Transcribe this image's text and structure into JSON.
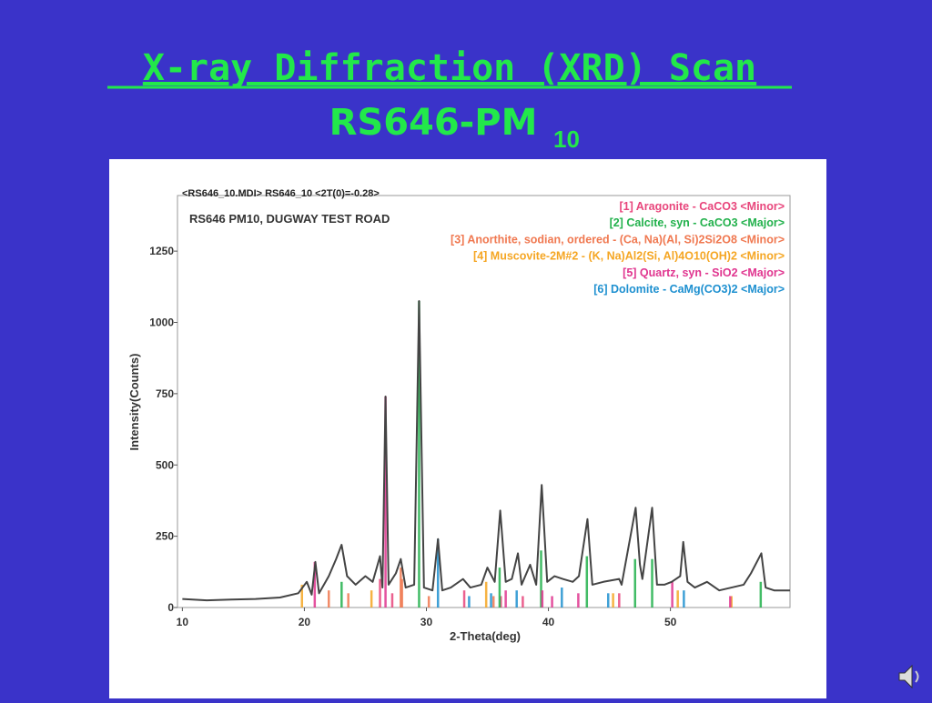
{
  "slide": {
    "title": "X-ray Diffraction (XRD) Scan",
    "subtitle": "RS646-PM",
    "subtitle_subscript": "10"
  },
  "chart_data": {
    "type": "line",
    "file_label": "<RS646_10.MDI> RS646_10 <2T(0)=-0.28>",
    "title": "RS646 PM10, DUGWAY TEST ROAD",
    "x_label": "2-Theta(deg)",
    "y_label": "Intensity(Counts)",
    "xlim": [
      9.6,
      59.8
    ],
    "ylim": [
      0,
      1445
    ],
    "xticks": [
      10,
      20,
      30,
      40,
      50
    ],
    "yticks": [
      0,
      250,
      500,
      750,
      1000,
      1250
    ],
    "series": [
      {
        "color": "#444444",
        "x": [
          10,
          12,
          14,
          16,
          18,
          19.5,
          20.2,
          20.6,
          20.9,
          21.2,
          22,
          22.6,
          23.05,
          23.5,
          24.2,
          25,
          25.6,
          26.2,
          26.4,
          26.65,
          26.9,
          27.5,
          27.9,
          28.3,
          29.0,
          29.4,
          29.8,
          30.5,
          30.95,
          31.3,
          32,
          33,
          33.6,
          34.5,
          35,
          35.6,
          36.05,
          36.5,
          37,
          37.5,
          37.8,
          38.5,
          39,
          39.45,
          39.9,
          40.5,
          41.2,
          42,
          42.5,
          43.2,
          43.6,
          44.5,
          45.8,
          46,
          47.15,
          47.5,
          47.7,
          48.5,
          48.9,
          49.5,
          50.1,
          50.8,
          51.05,
          51.4,
          52,
          53,
          54,
          55,
          56,
          56.6,
          57.45,
          57.8,
          58.5,
          59.8
        ],
        "values": [
          30,
          25,
          28,
          30,
          35,
          50,
          90,
          45,
          160,
          50,
          110,
          170,
          220,
          110,
          80,
          110,
          90,
          180,
          70,
          740,
          80,
          120,
          170,
          70,
          80,
          1075,
          70,
          60,
          240,
          60,
          70,
          100,
          70,
          80,
          140,
          90,
          340,
          90,
          100,
          190,
          80,
          150,
          80,
          430,
          90,
          110,
          100,
          90,
          110,
          310,
          80,
          90,
          100,
          80,
          350,
          150,
          100,
          350,
          80,
          80,
          90,
          110,
          230,
          90,
          70,
          90,
          60,
          70,
          80,
          120,
          190,
          70,
          60,
          60
        ]
      }
    ],
    "phases": [
      {
        "label": "[1] Aragonite - CaCO3 <Minor>",
        "color": "#e8467c",
        "x": [
          26.2,
          27.2,
          33.1,
          36.1,
          37.9,
          45.8
        ],
        "values": [
          100,
          50,
          60,
          40,
          40,
          50
        ]
      },
      {
        "label": "[2] Calcite, syn - CaCO3 <Major>",
        "color": "#22b14c",
        "x": [
          23.05,
          29.4,
          36.0,
          39.4,
          43.15,
          47.1,
          48.5,
          57.4
        ],
        "values": [
          90,
          1075,
          140,
          200,
          180,
          170,
          170,
          90
        ]
      },
      {
        "label": "[3] Anorthite, sodian, ordered - (Ca, Na)(Al, Si)2Si2O8 <Minor>",
        "color": "#f07850",
        "x": [
          22.0,
          23.6,
          27.9,
          28.0,
          30.2,
          35.5
        ],
        "values": [
          60,
          50,
          140,
          100,
          40,
          40
        ]
      },
      {
        "label": "[4] Muscovite-2M#2 - (K, Na)Al2(Si, Al)4O10(OH)2 <Minor>",
        "color": "#f5a623",
        "x": [
          19.8,
          25.5,
          34.9,
          45.3,
          50.6,
          55.0
        ],
        "values": [
          80,
          60,
          90,
          50,
          60,
          40
        ]
      },
      {
        "label": "[5] Quartz, syn - SiO2 <Major>",
        "color": "#e0358f",
        "x": [
          20.85,
          26.65,
          36.5,
          39.5,
          40.3,
          42.45,
          50.15,
          54.9
        ],
        "values": [
          160,
          740,
          60,
          60,
          40,
          50,
          90,
          40
        ]
      },
      {
        "label": "[6] Dolomite - CaMg(CO3)2 <Major>",
        "color": "#1e90d0",
        "x": [
          30.95,
          33.5,
          35.3,
          37.4,
          41.1,
          44.9,
          51.1
        ],
        "values": [
          240,
          40,
          50,
          60,
          70,
          50,
          60
        ]
      }
    ]
  }
}
